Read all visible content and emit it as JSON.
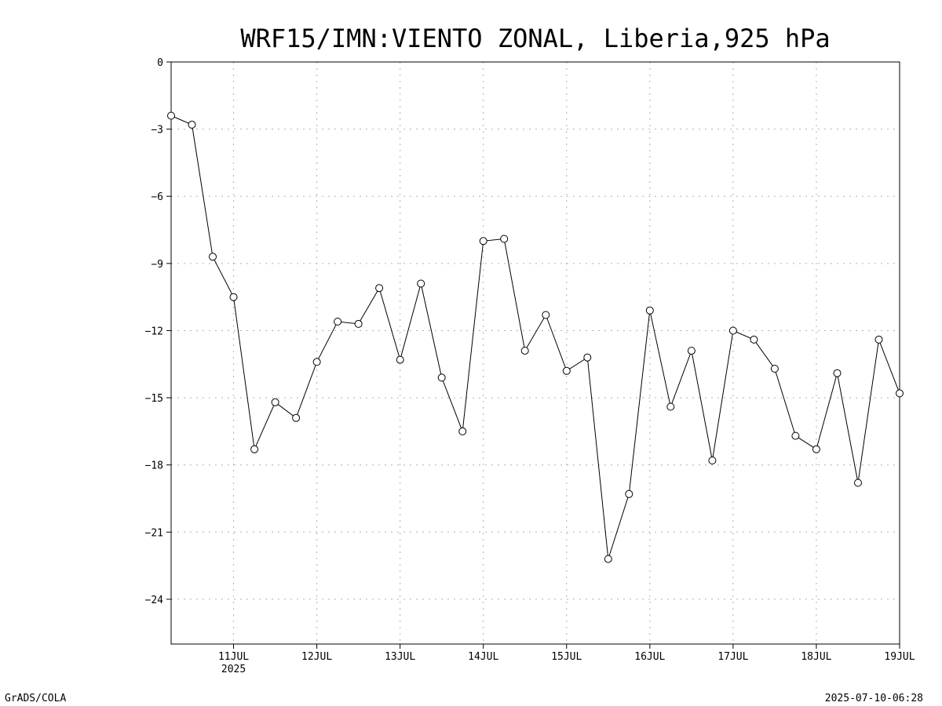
{
  "chart_data": {
    "type": "line",
    "title": "WRF15/IMN:VIENTO ZONAL, Liberia,925 hPa",
    "ylim": [
      -26,
      0
    ],
    "xlim": [
      "2025-07-10T06:00",
      "2025-07-19T00:00"
    ],
    "yticks": [
      0,
      -3,
      -6,
      -9,
      -12,
      -15,
      -18,
      -21,
      -24
    ],
    "xticks": [
      {
        "date": "2025-07-11",
        "label": "11JUL",
        "sublabel": "2025"
      },
      {
        "date": "2025-07-12",
        "label": "12JUL"
      },
      {
        "date": "2025-07-13",
        "label": "13JUL"
      },
      {
        "date": "2025-07-14",
        "label": "14JUL"
      },
      {
        "date": "2025-07-15",
        "label": "15JUL"
      },
      {
        "date": "2025-07-16",
        "label": "16JUL"
      },
      {
        "date": "2025-07-17",
        "label": "17JUL"
      },
      {
        "date": "2025-07-18",
        "label": "18JUL"
      },
      {
        "date": "2025-07-19",
        "label": "19JUL"
      }
    ],
    "grid": true,
    "x": [
      "2025-07-10T06:00",
      "2025-07-10T12:00",
      "2025-07-10T18:00",
      "2025-07-11T00:00",
      "2025-07-11T06:00",
      "2025-07-11T12:00",
      "2025-07-11T18:00",
      "2025-07-12T00:00",
      "2025-07-12T06:00",
      "2025-07-12T12:00",
      "2025-07-12T18:00",
      "2025-07-13T00:00",
      "2025-07-13T06:00",
      "2025-07-13T12:00",
      "2025-07-13T18:00",
      "2025-07-14T00:00",
      "2025-07-14T06:00",
      "2025-07-14T12:00",
      "2025-07-14T18:00",
      "2025-07-15T00:00",
      "2025-07-15T06:00",
      "2025-07-15T12:00",
      "2025-07-15T18:00",
      "2025-07-16T00:00",
      "2025-07-16T06:00",
      "2025-07-16T12:00",
      "2025-07-16T18:00",
      "2025-07-17T00:00",
      "2025-07-17T06:00",
      "2025-07-17T12:00",
      "2025-07-17T18:00",
      "2025-07-18T00:00",
      "2025-07-18T06:00",
      "2025-07-18T12:00",
      "2025-07-18T18:00",
      "2025-07-19T00:00"
    ],
    "series": [
      {
        "values": [
          -2.4,
          -2.8,
          -8.7,
          -10.5,
          -17.3,
          -15.2,
          -15.9,
          -13.4,
          -11.6,
          -11.7,
          -10.1,
          -13.3,
          -9.9,
          -14.1,
          -16.5,
          -8.0,
          -7.9,
          -12.9,
          -11.3,
          -13.8,
          -13.2,
          -22.2,
          -19.3,
          -11.1,
          -15.4,
          -12.9,
          -17.8,
          -12.0,
          -12.4,
          -13.7,
          -16.7,
          -17.3,
          -13.9,
          -18.8,
          -12.4,
          -14.8
        ]
      }
    ]
  },
  "footer": {
    "left": "GrADS/COLA",
    "right": "2025-07-10-06:28"
  }
}
